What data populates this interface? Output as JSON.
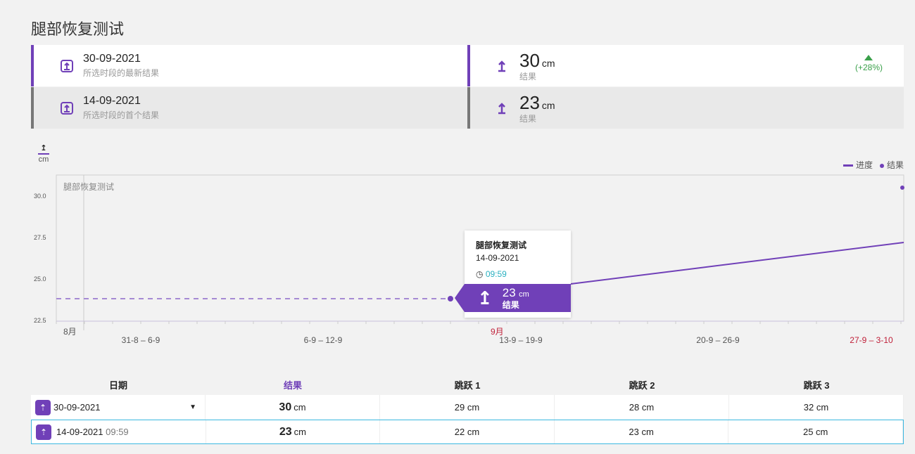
{
  "title": "腿部恢复测试",
  "cards": [
    {
      "date": "30-09-2021",
      "desc": "所选时段的最新结果",
      "value": "30",
      "unit": "cm",
      "label": "结果",
      "trend": "(+28%)"
    },
    {
      "date": "14-09-2021",
      "desc": "所选时段的首个结果",
      "value": "23",
      "unit": "cm",
      "label": "结果"
    }
  ],
  "colors": {
    "accent": "#7040b8",
    "trend_up": "#3aa04a",
    "selected_border": "#3bb8e0",
    "month_highlight": "#c0213a"
  },
  "chart_data": {
    "type": "line",
    "unit": "cm",
    "inner_title": "腿部恢复测试",
    "yticks": [
      "30.0",
      "27.5",
      "25.0",
      "22.5"
    ],
    "ylim": [
      22.5,
      30.5
    ],
    "months": [
      "8月",
      "9月"
    ],
    "weeks": [
      "31-8 – 6-9",
      "6-9 – 12-9",
      "13-9 – 19-9",
      "20-9 – 26-9",
      "27-9 – 3-10"
    ],
    "legend": [
      {
        "name": "进度",
        "kind": "line"
      },
      {
        "name": "结果",
        "kind": "dot"
      }
    ],
    "legend_position": "top-right",
    "points": [
      {
        "date": "14-09-2021",
        "value": 23
      },
      {
        "date": "30-09-2021",
        "value": 30
      }
    ]
  },
  "tooltip": {
    "title": "腿部恢复测试",
    "date": "14-09-2021",
    "time": "09:59",
    "value": "23",
    "unit": "cm",
    "label": "结果"
  },
  "table": {
    "headers": [
      "日期",
      "结果",
      "跳跃 1",
      "跳跃 2",
      "跳跃 3"
    ],
    "rows": [
      {
        "date": "30-09-2021",
        "time": "",
        "result": "30",
        "unit": "cm",
        "j1": "29 cm",
        "j2": "28 cm",
        "j3": "32 cm"
      },
      {
        "date": "14-09-2021",
        "time": "09:59",
        "result": "23",
        "unit": "cm",
        "j1": "22 cm",
        "j2": "23 cm",
        "j3": "25 cm"
      }
    ]
  }
}
